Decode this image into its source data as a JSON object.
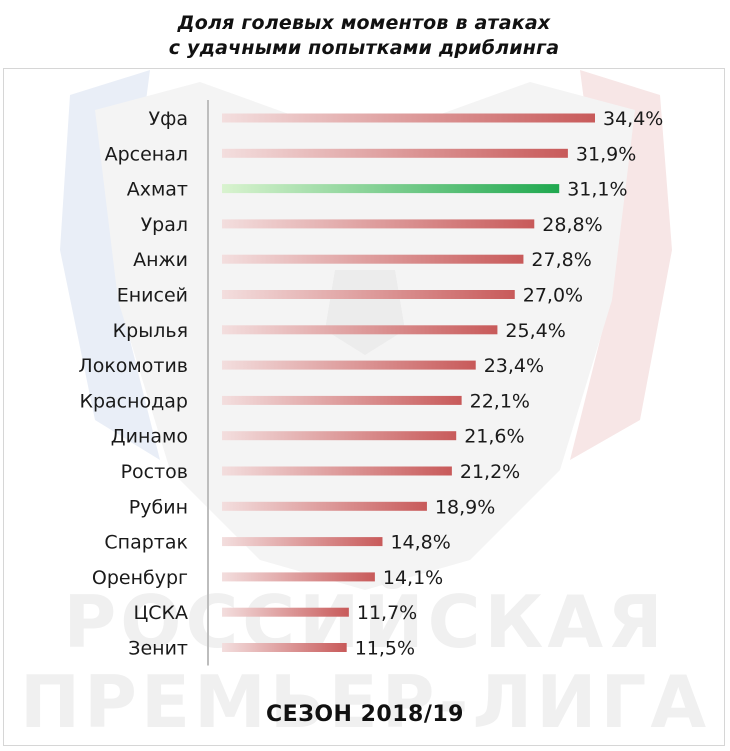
{
  "title_lines": [
    "Доля голевых моментов в атаках",
    "с удачными попытками дриблинга"
  ],
  "season": "СЕЗОН 2018/19",
  "watermark": [
    "РОССИЙСКАЯ",
    "ПРЕМЬЕР-ЛИГА"
  ],
  "colors": {
    "bar": "#c85a5a",
    "bar_fade": "#f3dede",
    "highlight": "#1fa84f",
    "highlight_fade": "#d9f3cf",
    "axis": "#bdbdbd"
  },
  "chart_data": {
    "type": "bar",
    "orientation": "horizontal",
    "title": "Доля голевых моментов в атаках с удачными попытками дриблинга",
    "xlabel": "",
    "ylabel": "",
    "xlim": [
      0,
      34.4
    ],
    "grid": false,
    "highlight_category": "Ахмат",
    "categories": [
      "Уфа",
      "Арсенал",
      "Ахмат",
      "Урал",
      "Анжи",
      "Енисей",
      "Крылья",
      "Локомотив",
      "Краснодар",
      "Динамо",
      "Ростов",
      "Рубин",
      "Спартак",
      "Оренбург",
      "ЦСКА",
      "Зенит"
    ],
    "values": [
      34.4,
      31.9,
      31.1,
      28.8,
      27.8,
      27.0,
      25.4,
      23.4,
      22.1,
      21.6,
      21.2,
      18.9,
      14.8,
      14.1,
      11.7,
      11.5
    ],
    "value_labels": [
      "34,4%",
      "31,9%",
      "31,1%",
      "28,8%",
      "27,8%",
      "27,0%",
      "25,4%",
      "23,4%",
      "22,1%",
      "21,6%",
      "21,2%",
      "18,9%",
      "14,8%",
      "14,1%",
      "11,7%",
      "11,5%"
    ]
  }
}
